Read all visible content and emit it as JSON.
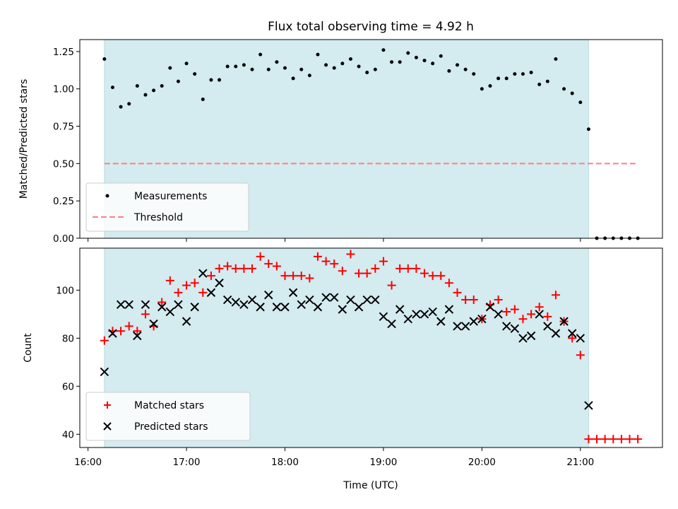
{
  "chart_data": [
    {
      "type": "scatter",
      "title": "Flux total observing time = 4.92 h",
      "ylabel": "Matched/Predicted stars",
      "xlabel": "",
      "xlim": [
        "15:55",
        "21:50"
      ],
      "ylim": [
        0,
        1.33
      ],
      "yticks": [
        0.0,
        0.25,
        0.5,
        0.75,
        1.0,
        1.25
      ],
      "ytick_labels": [
        "0.00",
        "0.25",
        "0.50",
        "0.75",
        "1.00",
        "1.25"
      ],
      "shaded_span": [
        "16:10",
        "21:05"
      ],
      "shade_color": "#d4ebf0",
      "legend_position": "lower-left",
      "series": [
        {
          "name": "Measurements",
          "style": "dot",
          "color": "#000000",
          "x": [
            "16:10",
            "16:15",
            "16:20",
            "16:25",
            "16:30",
            "16:35",
            "16:40",
            "16:45",
            "16:50",
            "16:55",
            "17:00",
            "17:05",
            "17:10",
            "17:15",
            "17:20",
            "17:25",
            "17:30",
            "17:35",
            "17:40",
            "17:45",
            "17:50",
            "17:55",
            "18:00",
            "18:05",
            "18:10",
            "18:15",
            "18:20",
            "18:25",
            "18:30",
            "18:35",
            "18:40",
            "18:45",
            "18:50",
            "18:55",
            "19:00",
            "19:05",
            "19:10",
            "19:15",
            "19:20",
            "19:25",
            "19:30",
            "19:35",
            "19:40",
            "19:45",
            "19:50",
            "19:55",
            "20:00",
            "20:05",
            "20:10",
            "20:15",
            "20:20",
            "20:25",
            "20:30",
            "20:35",
            "20:40",
            "20:45",
            "20:50",
            "20:55",
            "21:00",
            "21:05",
            "21:10",
            "21:15",
            "21:20",
            "21:25",
            "21:30",
            "21:35"
          ],
          "y": [
            1.2,
            1.01,
            0.88,
            0.9,
            1.02,
            0.96,
            0.99,
            1.02,
            1.14,
            1.05,
            1.17,
            1.1,
            0.93,
            1.06,
            1.06,
            1.15,
            1.15,
            1.16,
            1.13,
            1.23,
            1.13,
            1.18,
            1.14,
            1.07,
            1.13,
            1.09,
            1.23,
            1.16,
            1.14,
            1.17,
            1.2,
            1.15,
            1.11,
            1.13,
            1.26,
            1.18,
            1.18,
            1.24,
            1.21,
            1.19,
            1.17,
            1.22,
            1.12,
            1.16,
            1.13,
            1.1,
            1.0,
            1.02,
            1.07,
            1.07,
            1.1,
            1.1,
            1.11,
            1.03,
            1.05,
            1.2,
            1.0,
            0.97,
            0.91,
            0.73,
            0.0,
            0.0,
            0.0,
            0.0,
            0.0,
            0.0
          ]
        },
        {
          "name": "Threshold",
          "style": "dashed",
          "color": "#ff7f7f",
          "x": [
            "16:10",
            "21:35"
          ],
          "y": [
            0.5,
            0.5
          ]
        }
      ]
    },
    {
      "type": "scatter",
      "title": "",
      "xlabel": "Time (UTC)",
      "ylabel": "Count",
      "xlim": [
        "15:55",
        "21:50"
      ],
      "ylim": [
        34.5,
        117.5
      ],
      "xticks": [
        "16:00",
        "17:00",
        "18:00",
        "19:00",
        "20:00",
        "21:00"
      ],
      "yticks": [
        40,
        60,
        80,
        100
      ],
      "shaded_span": [
        "16:10",
        "21:05"
      ],
      "shade_color": "#d4ebf0",
      "legend_position": "lower-left",
      "series": [
        {
          "name": "Matched stars",
          "style": "plus",
          "color": "#ff0000",
          "x": [
            "16:10",
            "16:15",
            "16:20",
            "16:25",
            "16:30",
            "16:35",
            "16:40",
            "16:45",
            "16:50",
            "16:55",
            "17:00",
            "17:05",
            "17:10",
            "17:15",
            "17:20",
            "17:25",
            "17:30",
            "17:35",
            "17:40",
            "17:45",
            "17:50",
            "17:55",
            "18:00",
            "18:05",
            "18:10",
            "18:15",
            "18:20",
            "18:25",
            "18:30",
            "18:35",
            "18:40",
            "18:45",
            "18:50",
            "18:55",
            "19:00",
            "19:05",
            "19:10",
            "19:15",
            "19:20",
            "19:25",
            "19:30",
            "19:35",
            "19:40",
            "19:45",
            "19:50",
            "19:55",
            "20:00",
            "20:05",
            "20:10",
            "20:15",
            "20:20",
            "20:25",
            "20:30",
            "20:35",
            "20:40",
            "20:45",
            "20:50",
            "20:55",
            "21:00",
            "21:05",
            "21:10",
            "21:15",
            "21:20",
            "21:25",
            "21:30",
            "21:35"
          ],
          "y": [
            79,
            83,
            83,
            85,
            83,
            90,
            85,
            95,
            104,
            99,
            102,
            103,
            99,
            106,
            109,
            110,
            109,
            109,
            109,
            114,
            111,
            110,
            106,
            106,
            106,
            105,
            114,
            112,
            111,
            108,
            115,
            107,
            107,
            109,
            112,
            102,
            109,
            109,
            109,
            107,
            106,
            106,
            103,
            99,
            96,
            96,
            88,
            94,
            96,
            91,
            92,
            88,
            90,
            93,
            89,
            98,
            87,
            80,
            73,
            38,
            38,
            38,
            38,
            38,
            38,
            38
          ]
        },
        {
          "name": "Predicted stars",
          "style": "x",
          "color": "#000000",
          "x": [
            "16:10",
            "16:15",
            "16:20",
            "16:25",
            "16:30",
            "16:35",
            "16:40",
            "16:45",
            "16:50",
            "16:55",
            "17:00",
            "17:05",
            "17:10",
            "17:15",
            "17:20",
            "17:25",
            "17:30",
            "17:35",
            "17:40",
            "17:45",
            "17:50",
            "17:55",
            "18:00",
            "18:05",
            "18:10",
            "18:15",
            "18:20",
            "18:25",
            "18:30",
            "18:35",
            "18:40",
            "18:45",
            "18:50",
            "18:55",
            "19:00",
            "19:05",
            "19:10",
            "19:15",
            "19:20",
            "19:25",
            "19:30",
            "19:35",
            "19:40",
            "19:45",
            "19:50",
            "19:55",
            "20:00",
            "20:05",
            "20:10",
            "20:15",
            "20:20",
            "20:25",
            "20:30",
            "20:35",
            "20:40",
            "20:45",
            "20:50",
            "20:55",
            "21:00",
            "21:05"
          ],
          "y": [
            66,
            82,
            94,
            94,
            81,
            94,
            86,
            93,
            91,
            94,
            87,
            93,
            107,
            99,
            103,
            96,
            95,
            94,
            96,
            93,
            98,
            93,
            93,
            99,
            94,
            96,
            93,
            97,
            97,
            92,
            96,
            93,
            96,
            96,
            89,
            86,
            92,
            88,
            90,
            90,
            91,
            87,
            92,
            85,
            85,
            87,
            88,
            93,
            90,
            85,
            84,
            80,
            81,
            90,
            85,
            82,
            87,
            82,
            80,
            52
          ]
        }
      ]
    }
  ]
}
